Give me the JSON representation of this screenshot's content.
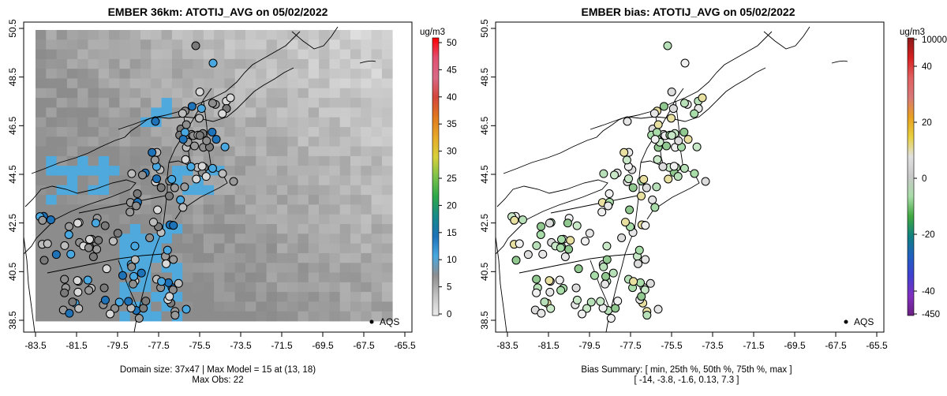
{
  "chart_data": [
    {
      "type": "map",
      "title": "EMBER 36km: ATOTIJ_AVG on 05/02/2022",
      "x_ticks": [
        "-83.5",
        "-81.5",
        "-79.5",
        "-77.5",
        "-75.5",
        "-73.5",
        "-71.5",
        "-69.5",
        "-67.5",
        "-65.5"
      ],
      "y_ticks": [
        "38.5",
        "40.5",
        "42.5",
        "44.5",
        "46.5",
        "48.5",
        "50.5"
      ],
      "xlim": [
        -84.5,
        -65.0
      ],
      "ylim": [
        38.4,
        50.6
      ],
      "colorbar": {
        "unit": "ug/m3",
        "ticks": [
          "0",
          "5",
          "10",
          "15",
          "20",
          "25",
          "30",
          "35",
          "40",
          "45",
          "50"
        ],
        "range": [
          0,
          50
        ],
        "colors": [
          "#ececec",
          "#c2c2c2",
          "#8e8e8e",
          "#4aa8e0",
          "#1e72b8",
          "#168a8a",
          "#2da84a",
          "#7cc24a",
          "#d8d03a",
          "#e8a92a",
          "#e0781e",
          "#d4463a",
          "#d86a86",
          "#e05070",
          "#ff0000"
        ]
      },
      "legend": {
        "symbol": "●",
        "label": "AQS",
        "placement": "bottom-right"
      },
      "footer": [
        "Domain size: 37x47 | Max Model = 15 at (13, 18)",
        "Max Obs: 22"
      ]
    },
    {
      "type": "map",
      "title": "EMBER bias: ATOTIJ_AVG on 05/02/2022",
      "x_ticks": [
        "-83.5",
        "-81.5",
        "-79.5",
        "-77.5",
        "-75.5",
        "-73.5",
        "-71.5",
        "-69.5",
        "-67.5",
        "-65.5"
      ],
      "y_ticks": [
        "38.5",
        "40.5",
        "42.5",
        "44.5",
        "46.5",
        "48.5",
        "50.5"
      ],
      "xlim": [
        -84.5,
        -65.0
      ],
      "ylim": [
        38.4,
        50.6
      ],
      "colorbar": {
        "unit": "ug/m3",
        "ticks": [
          "10000",
          "40",
          "20",
          "0",
          "-20",
          "-40",
          "-450"
        ],
        "colors": [
          "#8b1a1a",
          "#d62020",
          "#e06060",
          "#d87878",
          "#e8a020",
          "#e8d040",
          "#e0e0e0",
          "#c8c8c8",
          "#a8dca8",
          "#40a840",
          "#108080",
          "#2060c0",
          "#4040d0",
          "#8030c0",
          "#6a2080"
        ]
      },
      "legend": {
        "symbol": "●",
        "label": "AQS",
        "placement": "bottom-right"
      },
      "footer": [
        "Bias Summary: [ min, 25th %, 50th %, 75th %, max ]",
        "[ -14,   -3.8,   -1.6,   0.13,   7.3 ]"
      ]
    }
  ]
}
